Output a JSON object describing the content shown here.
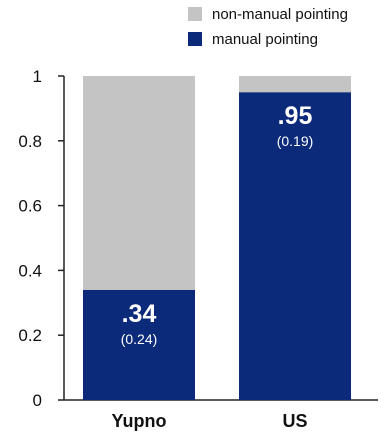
{
  "chart_data": {
    "type": "bar",
    "stacked": true,
    "categories": [
      "Yupno",
      "US"
    ],
    "series": [
      {
        "name": "manual pointing",
        "values": [
          0.34,
          0.95
        ],
        "color": "#0b2a7a"
      },
      {
        "name": "non-manual pointing",
        "values": [
          0.66,
          0.05
        ],
        "color": "#c4c4c4"
      }
    ],
    "data_labels": [
      {
        "main": ".34",
        "sub": "(0.24)"
      },
      {
        "main": ".95",
        "sub": "(0.19)"
      }
    ],
    "ylim": [
      0,
      1
    ],
    "yticks": [
      "0",
      "0.2",
      "0.4",
      "0.6",
      "0.8",
      "1"
    ],
    "ytick_values": [
      0,
      0.2,
      0.4,
      0.6,
      0.8,
      1
    ],
    "grid": false,
    "legend": {
      "placement": "top-right",
      "entries": [
        {
          "label": "non-manual pointing",
          "color": "#c4c4c4"
        },
        {
          "label": "manual pointing",
          "color": "#0b2a7a"
        }
      ]
    },
    "title": "",
    "xlabel": "",
    "ylabel": ""
  }
}
